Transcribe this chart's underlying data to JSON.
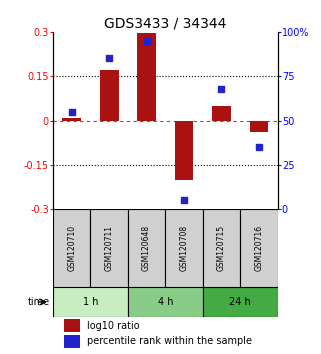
{
  "title": "GDS3433 / 34344",
  "samples": [
    "GSM120710",
    "GSM120711",
    "GSM120648",
    "GSM120708",
    "GSM120715",
    "GSM120716"
  ],
  "log10_ratio": [
    0.01,
    0.17,
    0.295,
    -0.2,
    0.05,
    -0.04
  ],
  "percentile_rank": [
    55,
    85,
    95,
    5,
    68,
    35
  ],
  "ylim": [
    -0.3,
    0.3
  ],
  "yticks_left": [
    -0.3,
    -0.15,
    0.0,
    0.15,
    0.3
  ],
  "yticks_right": [
    0,
    25,
    50,
    75,
    100
  ],
  "ytick_labels_left": [
    "-0.3",
    "-0.15",
    "0",
    "0.15",
    "0.3"
  ],
  "ytick_labels_right": [
    "0",
    "25",
    "50",
    "75",
    "100%"
  ],
  "bar_color": "#aa1111",
  "dot_color": "#2222cc",
  "hline_color": "#cc3333",
  "grid_color": "#000000",
  "grid_linewidth": 0.8,
  "time_groups": [
    {
      "label": "1 h",
      "samples": [
        "GSM120710",
        "GSM120711"
      ],
      "color": "#c8edc0"
    },
    {
      "label": "4 h",
      "samples": [
        "GSM120648",
        "GSM120708"
      ],
      "color": "#88cc88"
    },
    {
      "label": "24 h",
      "samples": [
        "GSM120715",
        "GSM120716"
      ],
      "color": "#44aa44"
    }
  ],
  "legend_bar_label": "log10 ratio",
  "legend_dot_label": "percentile rank within the sample",
  "bar_width": 0.5,
  "dot_size": 18,
  "title_fontsize": 10,
  "tick_fontsize": 7,
  "label_fontsize": 7,
  "sample_label_fontsize": 5.5
}
